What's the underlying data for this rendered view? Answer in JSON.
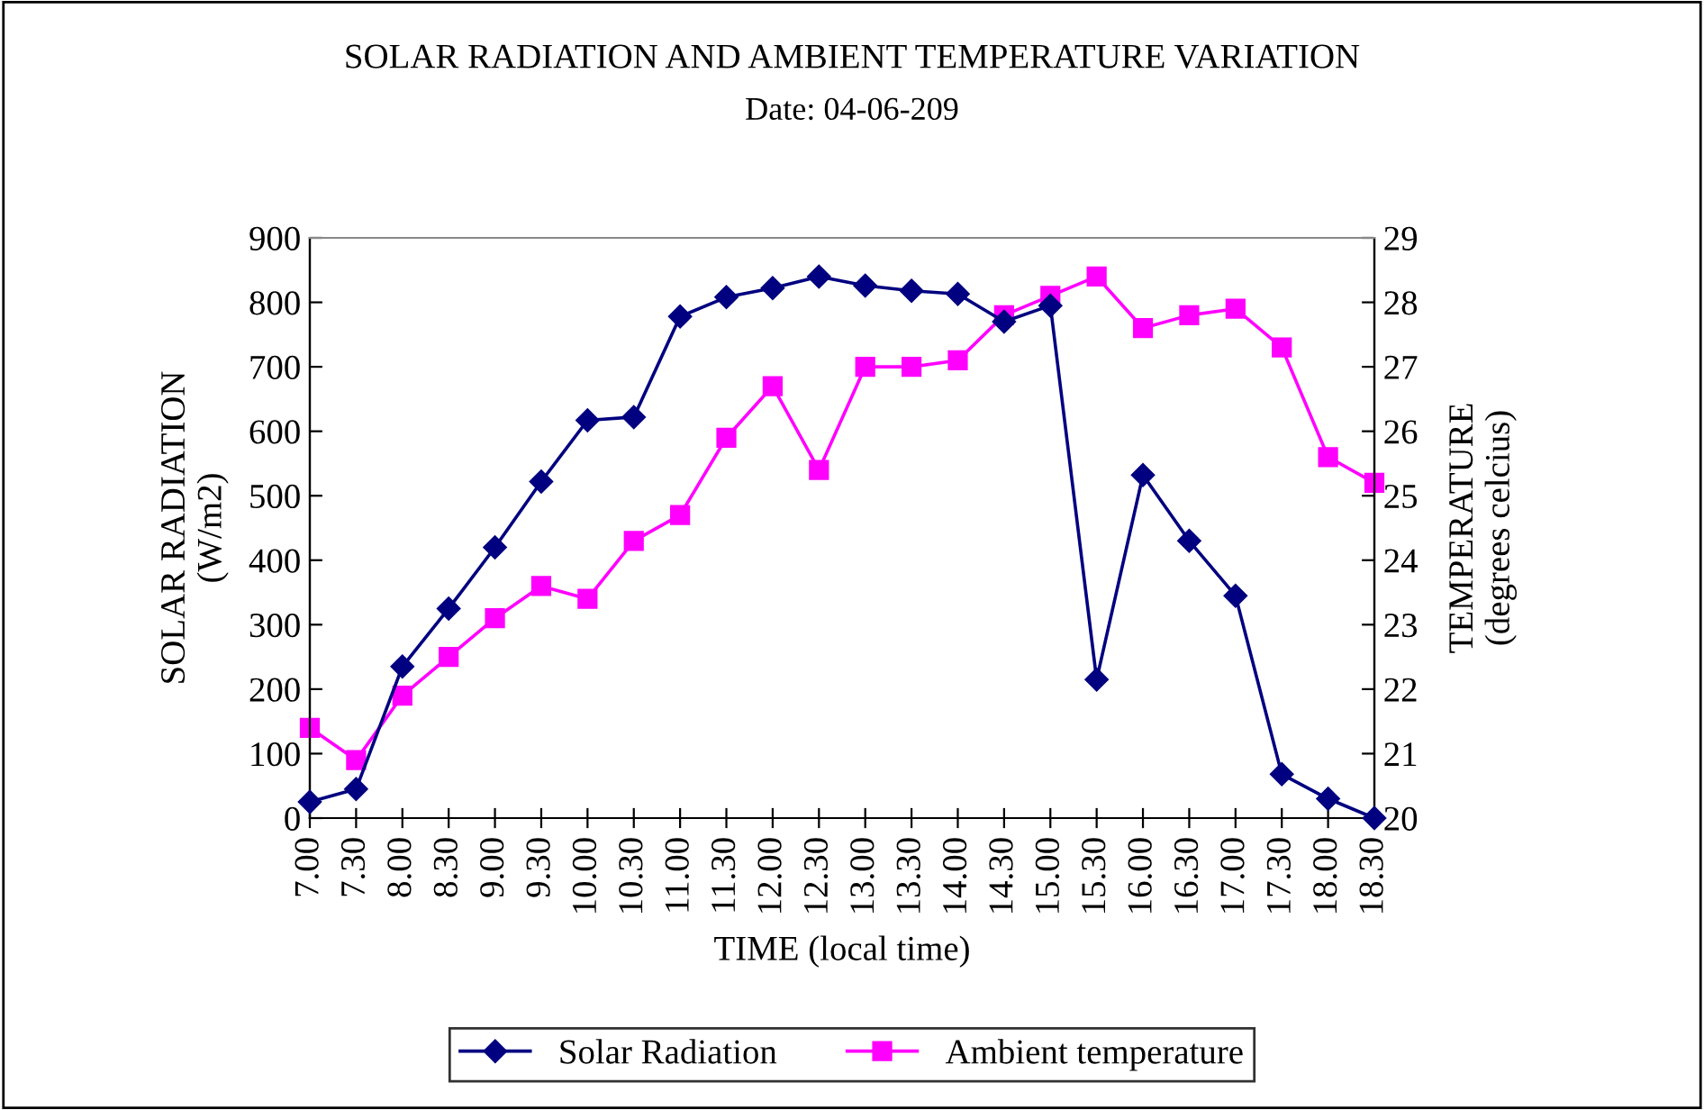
{
  "chart_data": {
    "type": "line",
    "title": "SOLAR RADIATION AND AMBIENT TEMPERATURE VARIATION",
    "subtitle": "Date: 04-06-209",
    "xlabel": "TIME (local time)",
    "ylabel": "SOLAR RADIATION\n(W/m2)",
    "y2label": "TEMPERATURE\n(degrees celcius)",
    "categories": [
      "7.00",
      "7.30",
      "8.00",
      "8.30",
      "9.00",
      "9.30",
      "10.00",
      "10.30",
      "11.00",
      "11.30",
      "12.00",
      "12.30",
      "13.00",
      "13.30",
      "14.00",
      "14.30",
      "15.00",
      "15.30",
      "16.00",
      "16.30",
      "17.00",
      "17.30",
      "18.00",
      "18.30"
    ],
    "series": [
      {
        "name": "Solar Radiation",
        "color": "#000080",
        "marker": "diamond",
        "values": [
          25,
          45,
          235,
          325,
          420,
          522,
          617,
          622,
          778,
          808,
          822,
          840,
          826,
          818,
          813,
          770,
          795,
          215,
          532,
          430,
          345,
          68,
          30,
          0
        ]
      },
      {
        "name": "Ambient temperature",
        "color": "#ff00ff",
        "marker": "square",
        "axis": "y2",
        "values": [
          21.4,
          20.9,
          21.9,
          22.5,
          23.1,
          23.6,
          23.4,
          24.3,
          24.7,
          25.9,
          26.7,
          25.4,
          27.0,
          27.0,
          27.1,
          27.8,
          28.1,
          28.4,
          27.6,
          27.8,
          27.9,
          27.3,
          25.6,
          25.2
        ]
      }
    ],
    "ylim": [
      0,
      900
    ],
    "yticks": [
      0,
      100,
      200,
      300,
      400,
      500,
      600,
      700,
      800,
      900
    ],
    "y2lim": [
      20,
      29
    ],
    "y2ticks": [
      20,
      21,
      22,
      23,
      24,
      25,
      26,
      27,
      28,
      29
    ],
    "grid": false,
    "legend": "bottom",
    "line_style": "solid"
  }
}
